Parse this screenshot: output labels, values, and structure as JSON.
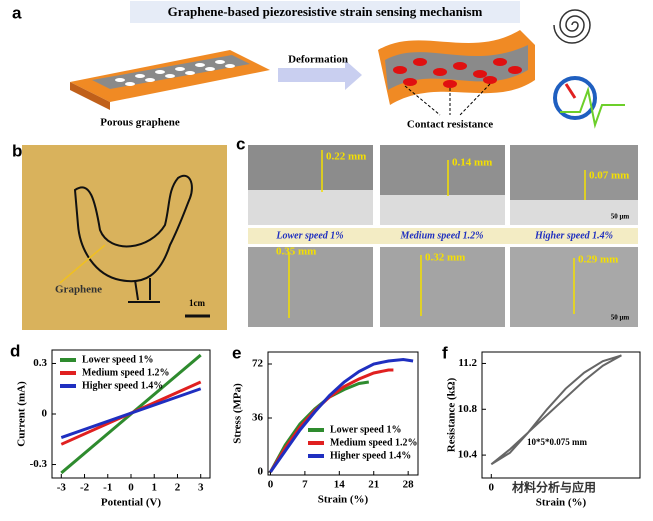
{
  "panel_a": {
    "label": "a",
    "title": "Graphene-based piezoresistive strain sensing mechanism",
    "arrow_label": "Deformation",
    "left_caption": "Porous graphene",
    "right_caption": "Contact resistance"
  },
  "panel_b": {
    "label": "b",
    "pointer": "Graphene",
    "scale_bar": "1cm"
  },
  "panel_c": {
    "label": "c",
    "top_heights": [
      "0.22 mm",
      "0.14 mm",
      "0.07 mm"
    ],
    "speeds": [
      "Lower speed 1%",
      "Medium speed 1.2%",
      "Higher speed 1.4%"
    ],
    "bottom_heights": [
      "0.35 mm",
      "0.32 mm",
      "0.29 mm"
    ],
    "scale_bars": [
      "50 μm",
      "50 μm"
    ]
  },
  "chart_data": [
    {
      "type": "line",
      "panel_label": "d",
      "xlabel": "Potential (V)",
      "ylabel": "Current (mA)",
      "x": [
        -3,
        3
      ],
      "xlim": [
        -3.4,
        3.4
      ],
      "ylim": [
        -0.38,
        0.38
      ],
      "xticks": [
        -3,
        -2,
        -1,
        0,
        1,
        2,
        3
      ],
      "yticks": [
        -0.3,
        0,
        0.3
      ],
      "legend": "upper left",
      "series": [
        {
          "name": "Lower speed 1%",
          "color": "#2e8b2e",
          "values": [
            -0.35,
            0.35
          ]
        },
        {
          "name": "Medium speed 1.2%",
          "color": "#e02020",
          "values": [
            -0.18,
            0.19
          ]
        },
        {
          "name": "Higher speed 1.4%",
          "color": "#1f2fc0",
          "values": [
            -0.14,
            0.15
          ]
        }
      ]
    },
    {
      "type": "line",
      "panel_label": "e",
      "xlabel": "Strain (%)",
      "ylabel": "Stress (MPa)",
      "xlim": [
        -0.5,
        30
      ],
      "ylim": [
        -2,
        80
      ],
      "xticks": [
        0,
        7,
        14,
        21,
        28
      ],
      "yticks": [
        0,
        36,
        72
      ],
      "legend": "lower right",
      "series": [
        {
          "name": "Lower speed 1%",
          "color": "#2e8b2e",
          "x": [
            0,
            3,
            6,
            9,
            12,
            15,
            18,
            20
          ],
          "values": [
            0,
            18,
            32,
            42,
            50,
            55,
            59,
            60
          ]
        },
        {
          "name": "Medium speed 1.2%",
          "color": "#e02020",
          "x": [
            0,
            3,
            6,
            9,
            12,
            15,
            18,
            21,
            24,
            25
          ],
          "values": [
            0,
            16,
            30,
            41,
            50,
            57,
            62,
            66,
            68,
            68
          ]
        },
        {
          "name": "Higher speed 1.4%",
          "color": "#1f2fc0",
          "x": [
            0,
            3,
            6,
            9,
            12,
            15,
            18,
            21,
            24,
            27,
            29
          ],
          "values": [
            0,
            14,
            28,
            40,
            51,
            60,
            67,
            72,
            74,
            75,
            74
          ]
        }
      ]
    },
    {
      "type": "line",
      "panel_label": "f",
      "xlabel": "Strain (%)",
      "ylabel": "Resistance (kΩ)",
      "annotation": "10*5*0.075 mm",
      "watermark": "材料分析与应用",
      "x": [
        0,
        1,
        2,
        3,
        4,
        5,
        6,
        7,
        6,
        5,
        4,
        3,
        2,
        1,
        0
      ],
      "xlim": [
        -0.5,
        8
      ],
      "ylim": [
        10.2,
        11.3
      ],
      "xticks": [
        0
      ],
      "yticks": [
        10.4,
        10.8,
        11.2
      ],
      "series": [
        {
          "color": "#666666",
          "values": [
            10.32,
            10.45,
            10.6,
            10.75,
            10.9,
            11.05,
            11.18,
            11.27,
            11.22,
            11.12,
            10.98,
            10.8,
            10.6,
            10.42,
            10.32
          ]
        }
      ]
    }
  ]
}
